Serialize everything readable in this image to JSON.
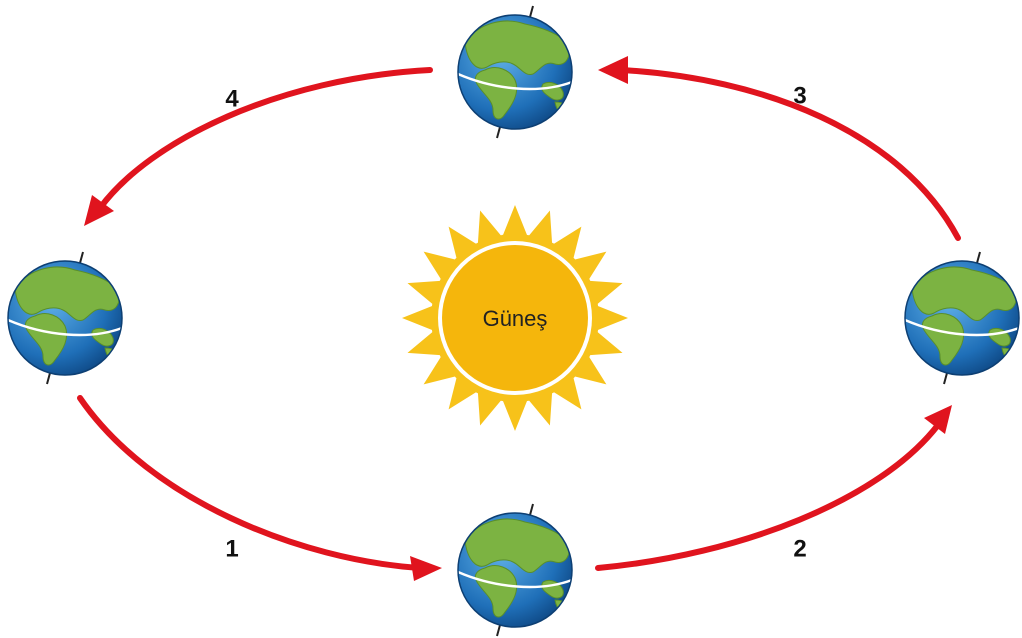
{
  "sun": {
    "label": "Güneş"
  },
  "arrows": [
    {
      "label": "1"
    },
    {
      "label": "2"
    },
    {
      "label": "3"
    },
    {
      "label": "4"
    }
  ]
}
